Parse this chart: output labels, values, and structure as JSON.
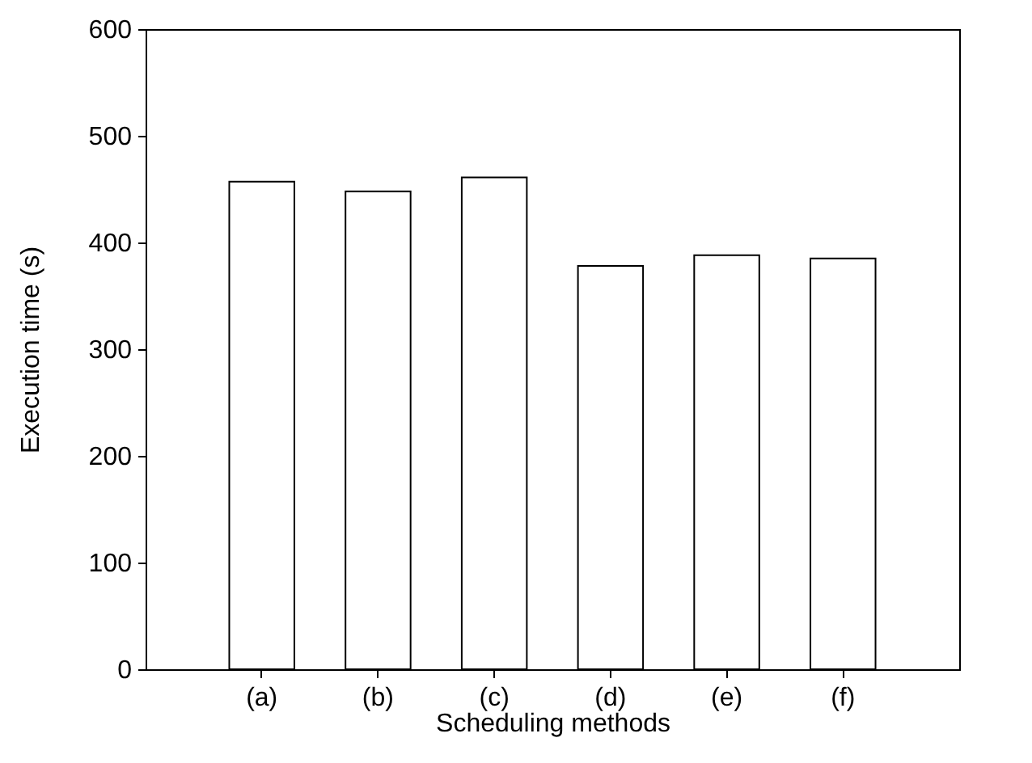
{
  "chart_data": {
    "type": "bar",
    "categories": [
      "(a)",
      "(b)",
      "(c)",
      "(d)",
      "(e)",
      "(f)"
    ],
    "values": [
      457,
      448,
      461,
      378,
      388,
      385
    ],
    "color": "#ffffff",
    "xlabel": "Scheduling methods",
    "ylabel": "Execution time (s)",
    "ylim": [
      0,
      600
    ],
    "yticks": [
      0,
      100,
      200,
      300,
      400,
      500,
      600
    ],
    "grid": false
  }
}
